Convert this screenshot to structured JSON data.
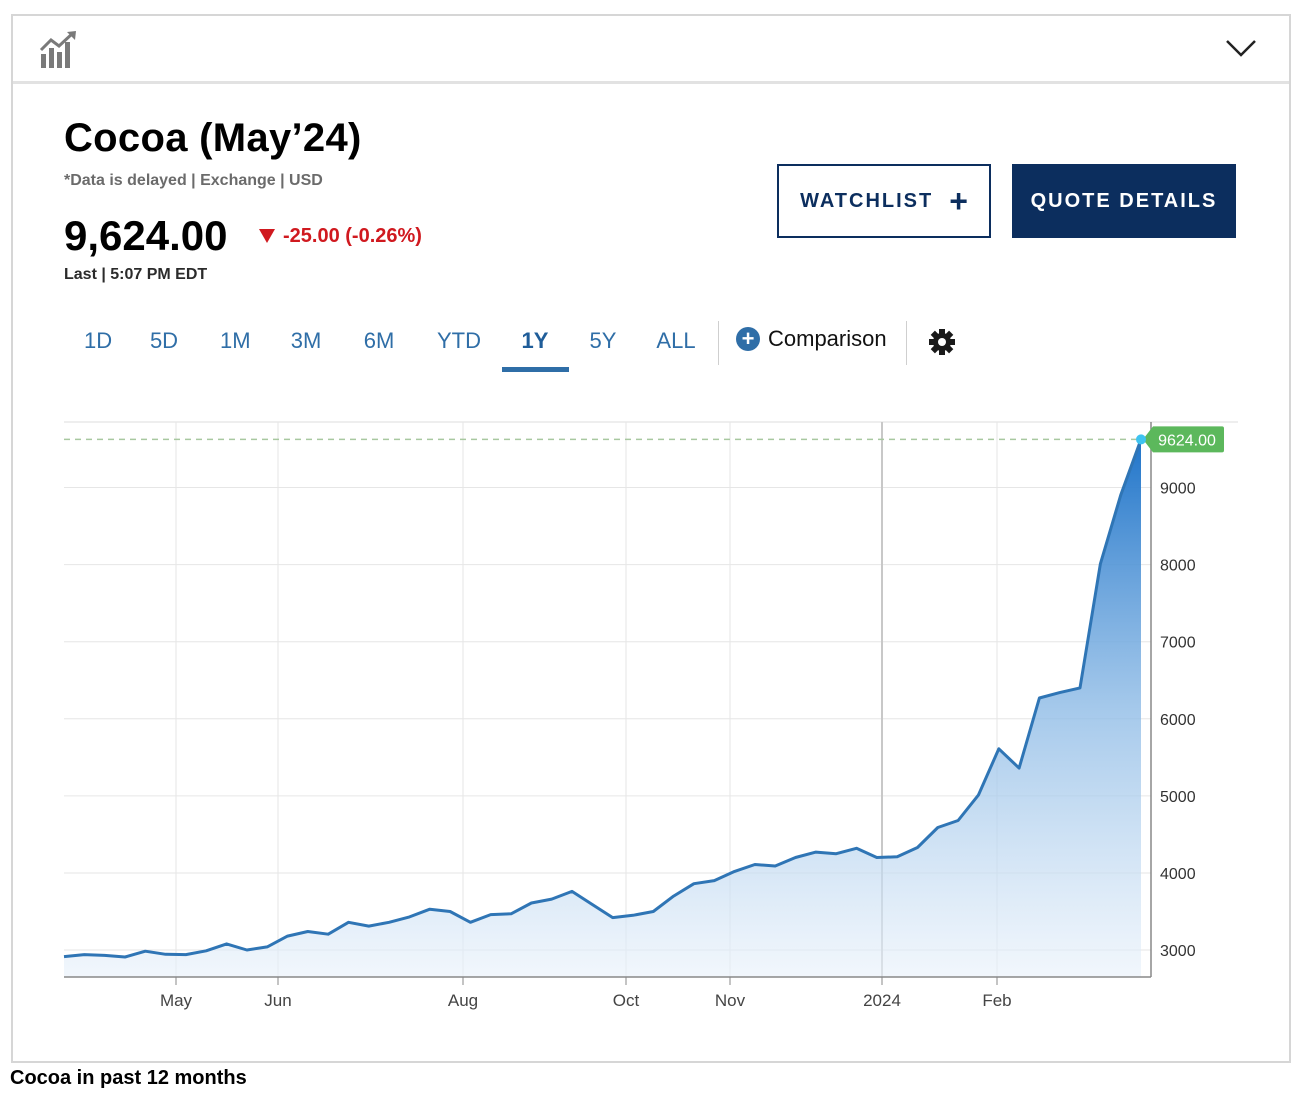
{
  "header": {
    "title": "Cocoa (May’24)",
    "subtitle": "*Data is delayed | Exchange | USD",
    "price": "9,624.00",
    "change": "-25.00 (-0.26%)",
    "last": "Last | 5:07 PM EDT"
  },
  "buttons": {
    "watchlist": "WATCHLIST",
    "quote_details": "QUOTE DETAILS"
  },
  "tabs": [
    "1D",
    "5D",
    "1M",
    "3M",
    "6M",
    "YTD",
    "1Y",
    "5Y",
    "ALL"
  ],
  "active_tab": "1Y",
  "comparison_label": "Comparison",
  "caption": "Cocoa in past 12 months",
  "colors": {
    "line": "#2f75b5",
    "area_top": "#1f74c9",
    "navy": "#0c2e5e",
    "down": "#d0191f",
    "last_badge": "#5cb85c"
  },
  "chart_data": {
    "type": "area",
    "x_tick_labels": [
      "May",
      "Jun",
      "Aug",
      "Oct",
      "Nov",
      "2024",
      "Feb"
    ],
    "y_tick_labels": [
      "3000",
      "4000",
      "5000",
      "6000",
      "7000",
      "8000",
      "9000"
    ],
    "ylim": [
      2650,
      9850
    ],
    "last_value_label": "9624.00",
    "grid": true,
    "series": [
      {
        "values": [
          2915,
          2940,
          2930,
          2910,
          2985,
          2945,
          2940,
          2990,
          3080,
          3000,
          3040,
          3180,
          3240,
          3205,
          3360,
          3310,
          3360,
          3430,
          3530,
          3500,
          3360,
          3460,
          3470,
          3610,
          3660,
          3760,
          3590,
          3420,
          3450,
          3500,
          3700,
          3860,
          3900,
          4020,
          4110,
          4090,
          4200,
          4270,
          4250,
          4320,
          4200,
          4210,
          4330,
          4590,
          4680,
          5010,
          5610,
          5360,
          6270,
          6340,
          6400,
          8010,
          8900,
          9624
        ]
      }
    ]
  }
}
